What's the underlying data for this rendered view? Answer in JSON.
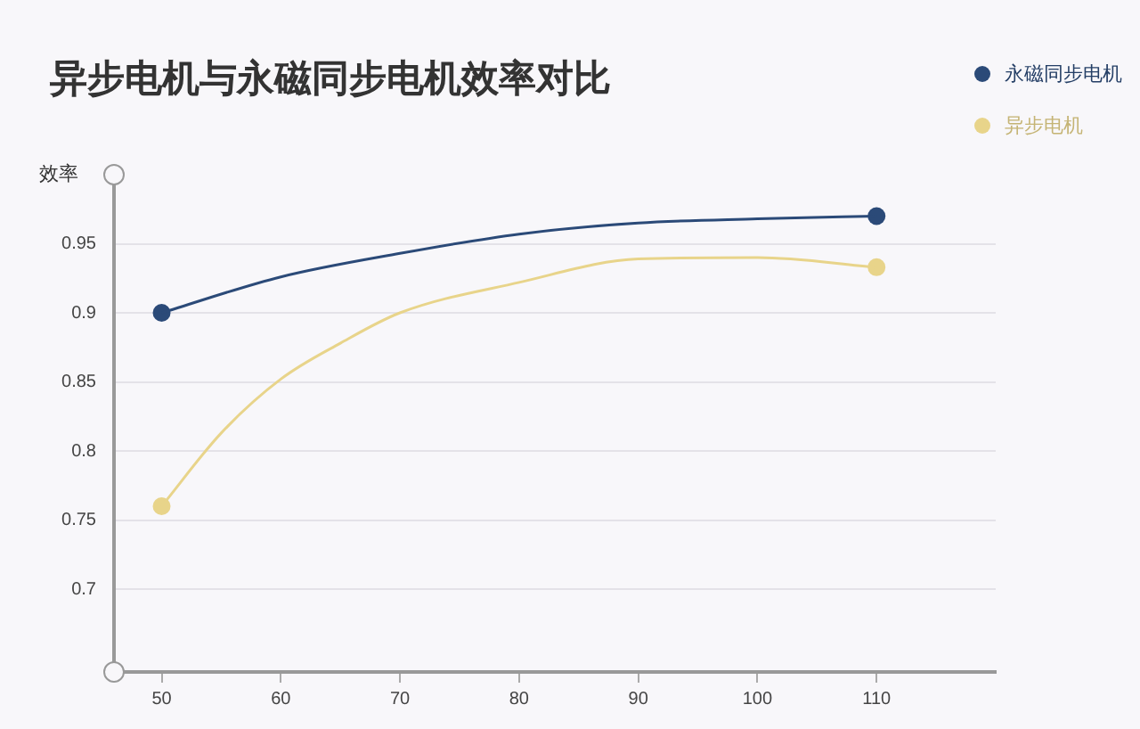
{
  "chart_data": {
    "type": "line",
    "title": "异步电机与永磁同步电机效率对比",
    "ylabel": "效率",
    "xlim": [
      46,
      120
    ],
    "xticks": [
      50,
      60,
      70,
      80,
      90,
      100,
      110
    ],
    "ylim": [
      0.64,
      1.0
    ],
    "yticks": [
      0.7,
      0.75,
      0.8,
      0.85,
      0.9,
      0.95
    ],
    "grid": "y",
    "legend": "top right",
    "marker": "circle",
    "line_style": "solid",
    "series": [
      {
        "name": "永磁同步电机",
        "color": "#2b4a78",
        "marker": "none",
        "x": [
          50,
          60,
          70,
          80,
          90,
          100,
          110
        ],
        "values": [
          0.9,
          0.926,
          0.943,
          0.957,
          0.965,
          0.968,
          0.97
        ]
      },
      {
        "name": "异步电机",
        "color": "#e8d48a",
        "marker": "none",
        "x": [
          50,
          55,
          60,
          65,
          70,
          80,
          90,
          100,
          110
        ],
        "values": [
          0.76,
          0.813,
          0.852,
          0.878,
          0.9,
          0.922,
          0.939,
          0.94,
          0.933
        ]
      },
      {
        "type": "scatter",
        "color": "#2b4a78",
        "x": [
          50,
          110
        ],
        "values": [
          0.9,
          0.97
        ]
      },
      {
        "type": "scatter",
        "color": "#e8d48a",
        "x": [
          50,
          110
        ],
        "values": [
          0.76,
          0.933
        ]
      }
    ]
  }
}
